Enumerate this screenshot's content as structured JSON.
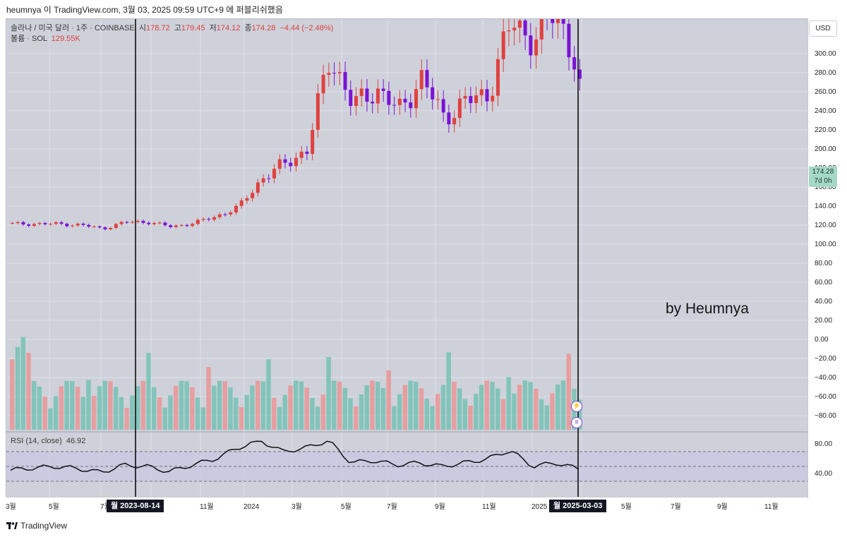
{
  "header": {
    "text": "heumnya 이 TradingView.com, 3월 03, 2025 09:59 UTC+9 에 퍼블리쉬했음"
  },
  "legend": {
    "symbol": "솔라나 / 미국 달러 · 1주 · COINBASE",
    "open_label": "시",
    "open": "178.72",
    "high_label": "고",
    "high": "179.45",
    "low_label": "저",
    "low": "174.12",
    "close_label": "종",
    "close": "174.28",
    "change": "−4.44 (−2.48%)",
    "volume_label": "볼륨 · SOL",
    "volume": "129.55K"
  },
  "rsi": {
    "label": "RSI (14, close)",
    "value": "46.92",
    "ticks": [
      "80.00",
      "40.00"
    ]
  },
  "price_axis": {
    "currency_button": "USD",
    "ticks": [
      "300.00",
      "280.00",
      "260.00",
      "240.00",
      "220.00",
      "200.00",
      "180.00",
      "160.00",
      "140.00",
      "120.00",
      "100.00",
      "80.00",
      "60.00",
      "40.00",
      "20.00",
      "0.00",
      "−20.00",
      "−40.00",
      "−60.00",
      "−80.00"
    ],
    "last_price": "174.28",
    "countdown": "7d 0h"
  },
  "time_axis": {
    "ticks": [
      "3월",
      "5월",
      "7월",
      "11월",
      "2024",
      "3월",
      "5월",
      "7월",
      "9월",
      "11월",
      "2025",
      "5월",
      "7월",
      "9월",
      "11월"
    ],
    "marker_left": "월 2023-08-14",
    "marker_right": "월 2025-03-03"
  },
  "watermark": "by Heumnya",
  "footer": {
    "brand": "TradingView"
  },
  "colors": {
    "up_candle": "#e0413f",
    "down_candle": "#7a12d6",
    "vol_up": "#75c2b4",
    "vol_down": "#ea9595",
    "rsi_band": "#c9c7e3",
    "background": "#ced1da"
  },
  "chart_data": {
    "type": "candlestick",
    "symbol": "SOL/USD",
    "interval": "1W",
    "ylim": [
      -95,
      310
    ],
    "x": [
      "2023-02",
      "2023-03",
      "2023-04",
      "2023-05",
      "2023-06",
      "2023-07",
      "2023-08",
      "2023-09",
      "2023-10",
      "2023-11",
      "2023-12",
      "2024-01",
      "2024-02",
      "2024-03",
      "2024-04",
      "2024-05",
      "2024-06",
      "2024-07",
      "2024-08",
      "2024-09",
      "2024-10",
      "2024-11",
      "2024-12",
      "2025-01",
      "2025-02",
      "2025-03"
    ],
    "close": [
      22,
      22,
      22,
      21,
      17,
      24,
      24,
      19,
      23,
      30,
      40,
      70,
      85,
      100,
      200,
      145,
      165,
      140,
      175,
      135,
      150,
      160,
      235,
      215,
      250,
      174.28
    ],
    "rsi": [
      45,
      48,
      50,
      47,
      42,
      52,
      50,
      43,
      52,
      60,
      75,
      85,
      70,
      75,
      85,
      55,
      58,
      52,
      55,
      50,
      55,
      60,
      72,
      50,
      55,
      46.92
    ],
    "annotations": [
      "by Heumnya"
    ]
  }
}
